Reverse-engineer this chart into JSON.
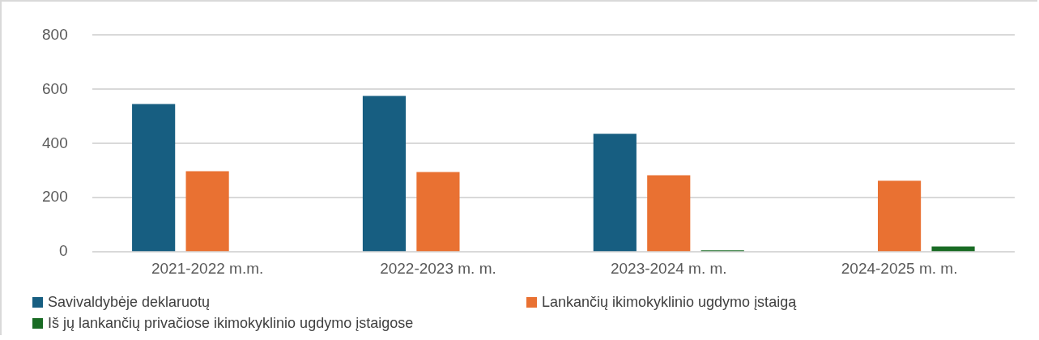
{
  "chart_data": {
    "type": "bar",
    "categories": [
      "2021-2022 m.m.",
      "2022-2023 m. m.",
      "2023-2024 m. m.",
      "2024-2025 m. m."
    ],
    "series": [
      {
        "name": "Savivaldybėje deklaruotų",
        "color": "#175e81",
        "values": [
          546,
          576,
          436,
          null
        ]
      },
      {
        "name": "Lankančių ikimokyklinio ugdymo įstaigą",
        "color": "#e97132",
        "values": [
          298,
          295,
          283,
          263
        ]
      },
      {
        "name": "Iš jų lankančių privačiose ikimokyklinio ugdymo įstaigose",
        "color": "#196b24",
        "values": [
          null,
          null,
          6,
          20
        ]
      }
    ],
    "ylim": [
      0,
      800
    ],
    "yticks": [
      0,
      200,
      400,
      600,
      800
    ],
    "grid": "y",
    "legend": "bottom"
  }
}
